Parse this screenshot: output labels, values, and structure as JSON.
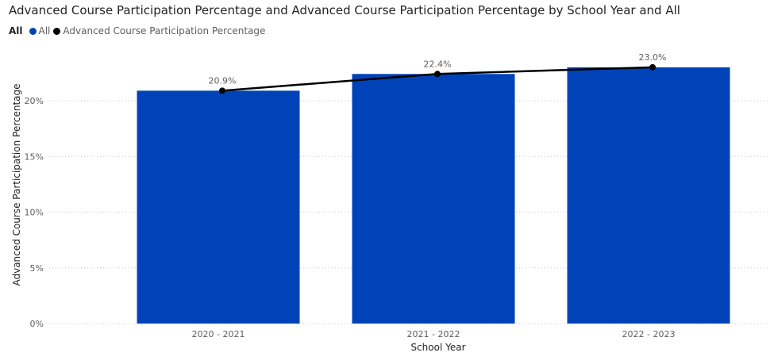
{
  "chart_data": {
    "type": "bar",
    "title": "Advanced Course Participation Percentage and Advanced Course Participation Percentage by School Year and All",
    "legend": {
      "title": "All",
      "placement": "top-left",
      "entries": [
        {
          "label": "All",
          "color": "#0043B8",
          "marker": "dot"
        },
        {
          "label": "Advanced Course Participation Percentage",
          "color": "#000000",
          "marker": "dot"
        }
      ]
    },
    "categories": [
      "2020 - 2021",
      "2021 - 2022",
      "2022 - 2023"
    ],
    "series": [
      {
        "name": "All",
        "type": "bar",
        "values": [
          20.9,
          22.4,
          23.0
        ],
        "color": "#0043B8"
      },
      {
        "name": "Advanced Course Participation Percentage",
        "type": "line",
        "values": [
          20.9,
          22.4,
          23.0
        ],
        "color": "#000000",
        "data_labels": [
          "20.9%",
          "22.4%",
          "23.0%"
        ]
      }
    ],
    "xlabel": "School Year",
    "ylabel": "Advanced Course Participation Percentage",
    "ylim": [
      0,
      23
    ],
    "yticks": [
      {
        "value": 0,
        "label": "0%"
      },
      {
        "value": 5,
        "label": "5%"
      },
      {
        "value": 10,
        "label": "10%"
      },
      {
        "value": 15,
        "label": "15%"
      },
      {
        "value": 20,
        "label": "20%"
      }
    ],
    "grid": true
  }
}
